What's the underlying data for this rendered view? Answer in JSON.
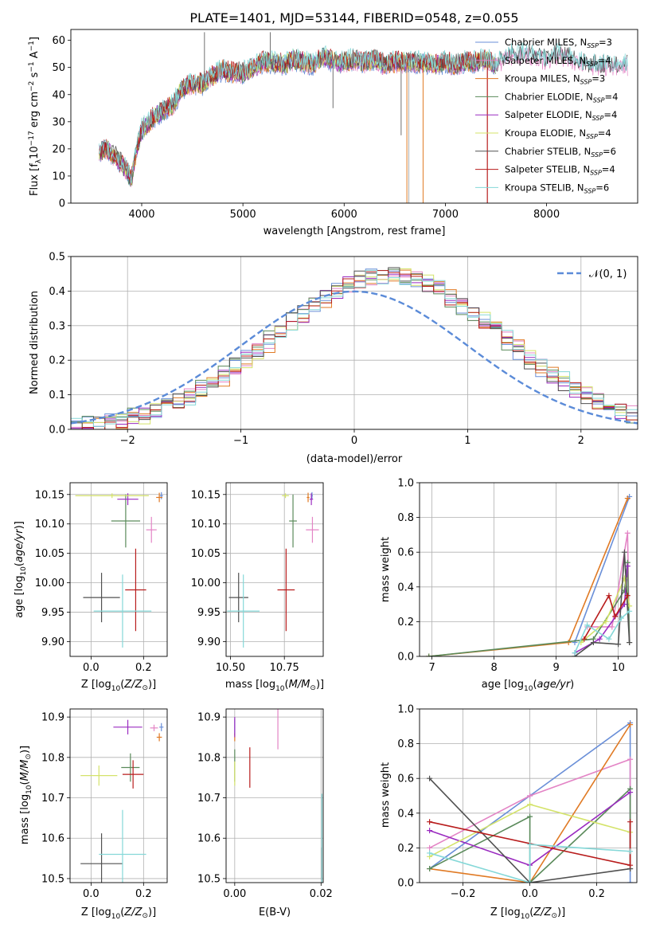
{
  "colors": [
    "#6a8fd8",
    "#e384c5",
    "#e07a24",
    "#5a8a5a",
    "#9a2bc0",
    "#d4e36a",
    "#505050",
    "#b81c1c",
    "#85d8d8"
  ],
  "chart_data": [
    {
      "id": "spectrum",
      "type": "line",
      "title": "PLATE=1401, MJD=53144, FIBERID=0548, z=0.055",
      "xlabel": "wavelength [Angstrom, rest frame]",
      "ylabel": "Flux [f",
      "xlim": [
        3300,
        8900
      ],
      "ylim": [
        0,
        64
      ],
      "xticks": [
        4000,
        5000,
        6000,
        7000,
        8000
      ],
      "yticks": [
        0,
        10,
        20,
        30,
        40,
        50,
        60
      ],
      "grid": false,
      "legend": "top-right",
      "series": [
        {
          "name": "Chabrier MILES, N",
          "nssp": "=3"
        },
        {
          "name": "Salpeter MILES, N",
          "nssp": "=4"
        },
        {
          "name": "Kroupa MILES, N",
          "nssp": "=3"
        },
        {
          "name": "Chabrier ELODIE, N",
          "nssp": "=4"
        },
        {
          "name": "Salpeter ELODIE, N",
          "nssp": "=4"
        },
        {
          "name": "Kroupa ELODIE, N",
          "nssp": "=4"
        },
        {
          "name": "Chabrier STELIB, N",
          "nssp": "=6"
        },
        {
          "name": "Salpeter STELIB, N",
          "nssp": "=4"
        },
        {
          "name": "Kroupa STELIB, N",
          "nssp": "=6"
        }
      ],
      "continuum": {
        "x": [
          3580,
          3650,
          3750,
          3850,
          3900,
          3950,
          4000,
          4100,
          4200,
          4300,
          4400,
          4500,
          4600,
          4700,
          4800,
          4900,
          5000,
          5100,
          5200,
          5300,
          5400,
          5500,
          5600,
          5700,
          5800,
          5900,
          6000,
          6100,
          6200,
          6300,
          6400,
          6500,
          6600,
          6700,
          6800,
          6900,
          7000,
          7100,
          7200,
          7300,
          7400,
          7500
        ],
        "y": [
          19,
          20,
          17,
          12,
          9,
          20,
          27,
          31,
          34,
          36,
          42,
          44,
          44,
          47,
          49,
          48,
          48,
          50,
          52,
          52,
          51,
          53,
          52,
          51,
          54,
          52,
          52,
          53,
          52,
          53,
          51,
          52,
          52,
          52,
          52,
          51,
          52,
          51,
          52,
          52,
          53,
          51
        ]
      },
      "extended": {
        "x": [
          7500,
          7600,
          7700,
          7800,
          7900,
          8000,
          8100,
          8200,
          8300,
          8400,
          8500,
          8600,
          8700,
          8800
        ],
        "y": [
          53,
          54,
          55,
          55,
          54,
          53,
          55,
          54,
          52,
          51,
          51,
          51,
          51,
          51
        ]
      },
      "spikes": [
        [
          4620,
          63
        ],
        [
          5270,
          63
        ],
        [
          5890,
          35
        ],
        [
          6563,
          25
        ],
        [
          6620,
          0
        ],
        [
          6780,
          0
        ]
      ]
    },
    {
      "id": "residuals",
      "type": "bar",
      "xlabel": "(data-model)/error",
      "ylabel": "Normed distribution",
      "xlim": [
        -2.5,
        2.5
      ],
      "ylim": [
        0,
        0.5
      ],
      "xticks": [
        -2,
        -1,
        0,
        1,
        2
      ],
      "yticks": [
        0,
        0.1,
        0.2,
        0.3,
        0.4,
        0.5
      ],
      "grid": true,
      "legend": "top-right",
      "legend_label": "𝒩(0, 1)",
      "bin_width": 0.1,
      "curve": "gaussian"
    },
    {
      "id": "age-Z",
      "type": "scatter",
      "xlabel": "Z [log",
      "ylabel": "age  [log",
      "xlim": [
        -0.08,
        0.29
      ],
      "ylim": [
        9.875,
        10.17
      ],
      "xticks": [
        0.0,
        0.2
      ],
      "yticks": [
        9.9,
        9.95,
        10.0,
        10.05,
        10.1,
        10.15
      ],
      "grid": true,
      "points": [
        {
          "c": 0,
          "x": 0.268,
          "y": 10.148,
          "xe": 0.006,
          "ye": 0.006
        },
        {
          "c": 1,
          "x": 0.23,
          "y": 10.09,
          "xe": 0.02,
          "ye": 0.022
        },
        {
          "c": 2,
          "x": 0.26,
          "y": 10.145,
          "xe": 0.012,
          "ye": 0.008
        },
        {
          "c": 3,
          "x": 0.132,
          "y": 10.105,
          "xe": 0.055,
          "ye": 0.045
        },
        {
          "c": 4,
          "x": 0.14,
          "y": 10.142,
          "xe": 0.04,
          "ye": 0.01
        },
        {
          "c": 5,
          "x": 0.08,
          "y": 10.148,
          "xe": 0.14,
          "ye": 0.004
        },
        {
          "c": 6,
          "x": 0.04,
          "y": 9.975,
          "xe": 0.07,
          "ye": 0.042
        },
        {
          "c": 7,
          "x": 0.17,
          "y": 9.988,
          "xe": 0.04,
          "ye": 0.07
        },
        {
          "c": 8,
          "x": 0.12,
          "y": 9.952,
          "xe": 0.11,
          "ye": 0.062
        }
      ]
    },
    {
      "id": "age-mass",
      "type": "scatter",
      "xlabel": "mass [log",
      "ylabel": "",
      "xlim": [
        10.48,
        10.93
      ],
      "ylim": [
        9.875,
        10.17
      ],
      "xticks": [
        10.5,
        10.75
      ],
      "yticks": [
        9.9,
        9.95,
        10.0,
        10.05,
        10.1,
        10.15
      ],
      "grid": true,
      "points": [
        {
          "c": 0,
          "x": 10.878,
          "y": 10.148,
          "xe": 0.004,
          "ye": 0.006
        },
        {
          "c": 1,
          "x": 10.88,
          "y": 10.09,
          "xe": 0.03,
          "ye": 0.022
        },
        {
          "c": 2,
          "x": 10.86,
          "y": 10.145,
          "xe": 0.006,
          "ye": 0.008
        },
        {
          "c": 3,
          "x": 10.79,
          "y": 10.105,
          "xe": 0.018,
          "ye": 0.045
        },
        {
          "c": 4,
          "x": 10.875,
          "y": 10.142,
          "xe": 0.008,
          "ye": 0.01
        },
        {
          "c": 5,
          "x": 10.755,
          "y": 10.148,
          "xe": 0.016,
          "ye": 0.004
        },
        {
          "c": 6,
          "x": 10.538,
          "y": 9.975,
          "xe": 0.045,
          "ye": 0.042
        },
        {
          "c": 7,
          "x": 10.758,
          "y": 9.988,
          "xe": 0.04,
          "ye": 0.07
        },
        {
          "c": 8,
          "x": 10.56,
          "y": 9.952,
          "xe": 0.075,
          "ye": 0.062
        }
      ]
    },
    {
      "id": "weight-age",
      "type": "line",
      "xlabel": "age  [log",
      "ylabel": "mass weight",
      "xlim": [
        6.8,
        10.3
      ],
      "ylim": [
        0,
        1
      ],
      "xticks": [
        7,
        8,
        9,
        10
      ],
      "yticks": [
        0.0,
        0.2,
        0.4,
        0.6,
        0.8,
        1.0
      ],
      "grid": true,
      "series": [
        {
          "c": 0,
          "x": [
            9.3,
            10.18
          ],
          "y": [
            0.08,
            0.92
          ]
        },
        {
          "c": 1,
          "x": [
            9.5,
            9.9,
            10.15,
            10.18
          ],
          "y": [
            0.17,
            0.17,
            0.71,
            0.08
          ]
        },
        {
          "c": 2,
          "x": [
            6.95,
            9.2,
            10.15
          ],
          "y": [
            0.0,
            0.08,
            0.91
          ]
        },
        {
          "c": 3,
          "x": [
            6.95,
            9.6,
            10.1,
            10.15,
            10.18
          ],
          "y": [
            0.0,
            0.1,
            0.38,
            0.54,
            0.08
          ]
        },
        {
          "c": 4,
          "x": [
            9.3,
            9.7,
            10.1,
            10.15
          ],
          "y": [
            0.02,
            0.1,
            0.3,
            0.52
          ]
        },
        {
          "c": 5,
          "x": [
            9.4,
            9.8,
            10.1,
            10.18
          ],
          "y": [
            0.08,
            0.2,
            0.45,
            0.29
          ]
        },
        {
          "c": 6,
          "x": [
            9.3,
            9.6,
            10.0,
            10.1,
            10.18
          ],
          "y": [
            0.0,
            0.08,
            0.07,
            0.6,
            0.08
          ]
        },
        {
          "c": 7,
          "x": [
            9.45,
            9.85,
            9.95,
            10.15
          ],
          "y": [
            0.1,
            0.35,
            0.23,
            0.35
          ]
        },
        {
          "c": 8,
          "x": [
            9.3,
            9.5,
            9.85,
            10.05,
            10.18
          ],
          "y": [
            0.02,
            0.18,
            0.1,
            0.22,
            0.26
          ]
        }
      ]
    },
    {
      "id": "mass-Z",
      "type": "scatter",
      "xlabel": "Z [log",
      "ylabel": "mass [log",
      "xlim": [
        -0.08,
        0.29
      ],
      "ylim": [
        10.49,
        10.92
      ],
      "xticks": [
        0.0,
        0.2
      ],
      "yticks": [
        10.5,
        10.6,
        10.7,
        10.8,
        10.9
      ],
      "grid": true,
      "points": [
        {
          "c": 0,
          "x": 0.268,
          "y": 10.875,
          "xe": 0.008,
          "ye": 0.01
        },
        {
          "c": 1,
          "x": 0.24,
          "y": 10.873,
          "xe": 0.015,
          "ye": 0.008
        },
        {
          "c": 2,
          "x": 0.26,
          "y": 10.85,
          "xe": 0.01,
          "ye": 0.01
        },
        {
          "c": 3,
          "x": 0.15,
          "y": 10.775,
          "xe": 0.035,
          "ye": 0.035
        },
        {
          "c": 4,
          "x": 0.14,
          "y": 10.875,
          "xe": 0.055,
          "ye": 0.018
        },
        {
          "c": 5,
          "x": 0.03,
          "y": 10.755,
          "xe": 0.07,
          "ye": 0.025
        },
        {
          "c": 6,
          "x": 0.04,
          "y": 10.537,
          "xe": 0.08,
          "ye": 0.075
        },
        {
          "c": 7,
          "x": 0.16,
          "y": 10.758,
          "xe": 0.04,
          "ye": 0.035
        },
        {
          "c": 8,
          "x": 0.12,
          "y": 10.56,
          "xe": 0.09,
          "ye": 0.11
        }
      ]
    },
    {
      "id": "mass-EBV",
      "type": "scatter",
      "xlabel": "E(B-V)",
      "ylabel": "",
      "xlim": [
        -0.002,
        0.0205
      ],
      "ylim": [
        10.49,
        10.92
      ],
      "xticks": [
        0.0,
        0.02
      ],
      "yticks": [
        10.5,
        10.6,
        10.7,
        10.8,
        10.9
      ],
      "grid": true,
      "points": [
        {
          "c": 0,
          "x": 0.0,
          "y": 10.875,
          "xe": 0.0,
          "ye": 0.02
        },
        {
          "c": 1,
          "x": 0.01,
          "y": 10.87,
          "xe": 0.0,
          "ye": 0.05
        },
        {
          "c": 2,
          "x": 0.0,
          "y": 10.85,
          "xe": 0.0,
          "ye": 0.01
        },
        {
          "c": 3,
          "x": 0.0,
          "y": 10.78,
          "xe": 0.0,
          "ye": 0.04
        },
        {
          "c": 4,
          "x": 0.0,
          "y": 10.875,
          "xe": 0.0,
          "ye": 0.025
        },
        {
          "c": 5,
          "x": 0.0,
          "y": 10.76,
          "xe": 0.0,
          "ye": 0.03
        },
        {
          "c": 6,
          "x": 0.0202,
          "y": 10.537,
          "xe": 0.0,
          "ye": 0.04
        },
        {
          "c": 7,
          "x": 0.0035,
          "y": 10.775,
          "xe": 0.0,
          "ye": 0.05
        },
        {
          "c": 8,
          "x": 0.0202,
          "y": 10.6,
          "xe": 0.0,
          "ye": 0.11
        }
      ]
    },
    {
      "id": "weight-Z",
      "type": "line",
      "xlabel": "Z [log",
      "ylabel": "mass weight",
      "xlim": [
        -0.33,
        0.32
      ],
      "ylim": [
        0,
        1
      ],
      "xticks": [
        -0.2,
        0.0,
        0.2
      ],
      "yticks": [
        0.0,
        0.2,
        0.4,
        0.6,
        0.8,
        1.0
      ],
      "grid": true,
      "series": [
        {
          "c": 0,
          "x": [
            -0.3,
            0.0,
            0.3,
            0.3
          ],
          "y": [
            0.08,
            0.5,
            0.92,
            0.0
          ]
        },
        {
          "c": 1,
          "x": [
            -0.3,
            0.0,
            0.3,
            0.3
          ],
          "y": [
            0.2,
            0.5,
            0.71,
            0.08
          ]
        },
        {
          "c": 2,
          "x": [
            -0.3,
            0.0,
            0.3
          ],
          "y": [
            0.08,
            0.0,
            0.91
          ]
        },
        {
          "c": 3,
          "x": [
            -0.3,
            0.0,
            0.0,
            0.3,
            0.3
          ],
          "y": [
            0.08,
            0.38,
            0.0,
            0.54,
            0.08
          ]
        },
        {
          "c": 4,
          "x": [
            -0.3,
            0.0,
            0.3
          ],
          "y": [
            0.3,
            0.1,
            0.52
          ]
        },
        {
          "c": 5,
          "x": [
            -0.3,
            0.0,
            0.3
          ],
          "y": [
            0.15,
            0.45,
            0.29
          ]
        },
        {
          "c": 6,
          "x": [
            -0.3,
            0.0,
            0.3
          ],
          "y": [
            0.6,
            0.0,
            0.08
          ]
        },
        {
          "c": 7,
          "x": [
            -0.3,
            0.3,
            0.3
          ],
          "y": [
            0.35,
            0.1,
            0.35
          ]
        },
        {
          "c": 8,
          "x": [
            -0.3,
            0.0,
            0.0,
            0.3
          ],
          "y": [
            0.17,
            0.0,
            0.22,
            0.18
          ]
        }
      ]
    }
  ]
}
